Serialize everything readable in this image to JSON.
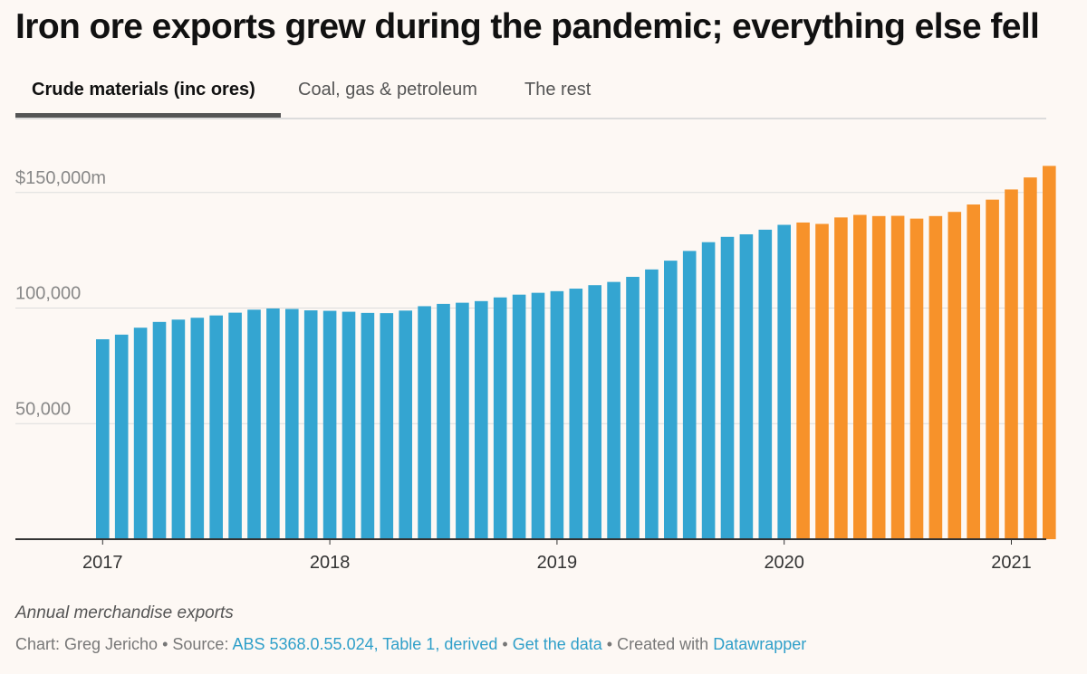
{
  "title": "Iron ore exports grew during the pandemic; everything else fell",
  "tabs": [
    {
      "label": "Crude materials (inc ores)",
      "active": true
    },
    {
      "label": "Coal, gas & petroleum",
      "active": false
    },
    {
      "label": "The rest",
      "active": false
    }
  ],
  "notes": "Annual merchandise exports",
  "footer": {
    "chart_prefix": "Chart: Greg Jericho",
    "source_prefix": "Source:",
    "source_link": "ABS 5368.0.55.024, Table 1, derived",
    "get_data": "Get the data",
    "created_prefix": "Created with",
    "datawrapper": "Datawrapper",
    "separator": "•"
  },
  "colors": {
    "pre_pandemic": "#34a5d1",
    "pandemic": "#f7922a",
    "grid": "#dddddd",
    "axis": "#333333"
  },
  "chart_data": {
    "type": "bar",
    "ylim": [
      0,
      165000
    ],
    "yticks": [
      {
        "value": 50000,
        "label": "50,000"
      },
      {
        "value": 100000,
        "label": "100,000"
      },
      {
        "value": 150000,
        "label": "$150,000m"
      }
    ],
    "xticks": [
      {
        "index": 0,
        "label": "2017"
      },
      {
        "index": 12,
        "label": "2018"
      },
      {
        "index": 24,
        "label": "2019"
      },
      {
        "index": 36,
        "label": "2020"
      },
      {
        "index": 48,
        "label": "2021"
      }
    ],
    "highlight_from_index": 37,
    "values": [
      86500,
      88500,
      91500,
      94000,
      95000,
      95800,
      96800,
      98000,
      99300,
      99800,
      99600,
      99000,
      98800,
      98400,
      97900,
      97800,
      98900,
      100800,
      101800,
      102300,
      103000,
      104600,
      105800,
      106600,
      107300,
      108400,
      109900,
      111300,
      113500,
      116700,
      120500,
      124700,
      128500,
      130800,
      131900,
      133900,
      136000,
      137000,
      136400,
      139200,
      140300,
      139800,
      139900,
      138700,
      139800,
      141600,
      144800,
      146900,
      151300,
      156500,
      161500
    ]
  }
}
